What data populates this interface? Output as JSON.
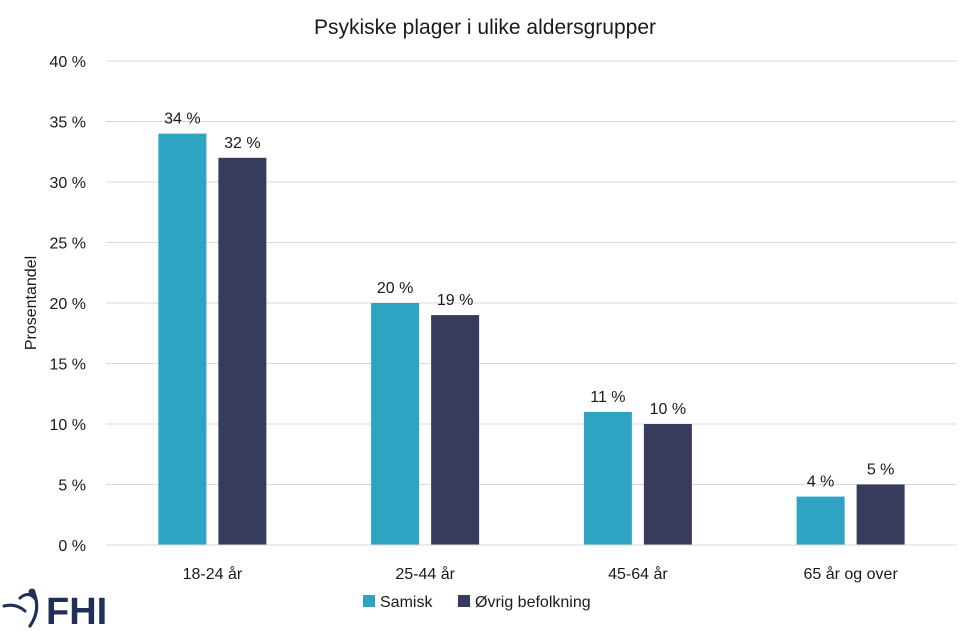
{
  "chart_data": {
    "type": "bar",
    "title": "Psykiske plager i ulike aldersgrupper",
    "ylabel": "Prosentandel",
    "xlabel": "",
    "categories": [
      "18-24 år",
      "25-44 år",
      "45-64 år",
      "65 år og over"
    ],
    "series": [
      {
        "name": "Samisk",
        "color": "#2ea3c2",
        "values": [
          34,
          20,
          11,
          4
        ],
        "labels": [
          "34 %",
          "20 %",
          "11 %",
          "4 %"
        ]
      },
      {
        "name": "Øvrig befolkning",
        "color": "#373b5c",
        "values": [
          32,
          19,
          10,
          5
        ],
        "labels": [
          "32 %",
          "19 %",
          "10 %",
          "5 %"
        ]
      }
    ],
    "ylim": [
      0,
      40
    ],
    "yticks": [
      0,
      5,
      10,
      15,
      20,
      25,
      30,
      35,
      40
    ],
    "ytick_labels": [
      "0 %",
      "5 %",
      "10 %",
      "15 %",
      "20 %",
      "25 %",
      "30 %",
      "35 %",
      "40 %"
    ],
    "grid": true,
    "legend_position": "bottom"
  },
  "logo": {
    "text": "FHI",
    "color": "#1f2f57"
  }
}
